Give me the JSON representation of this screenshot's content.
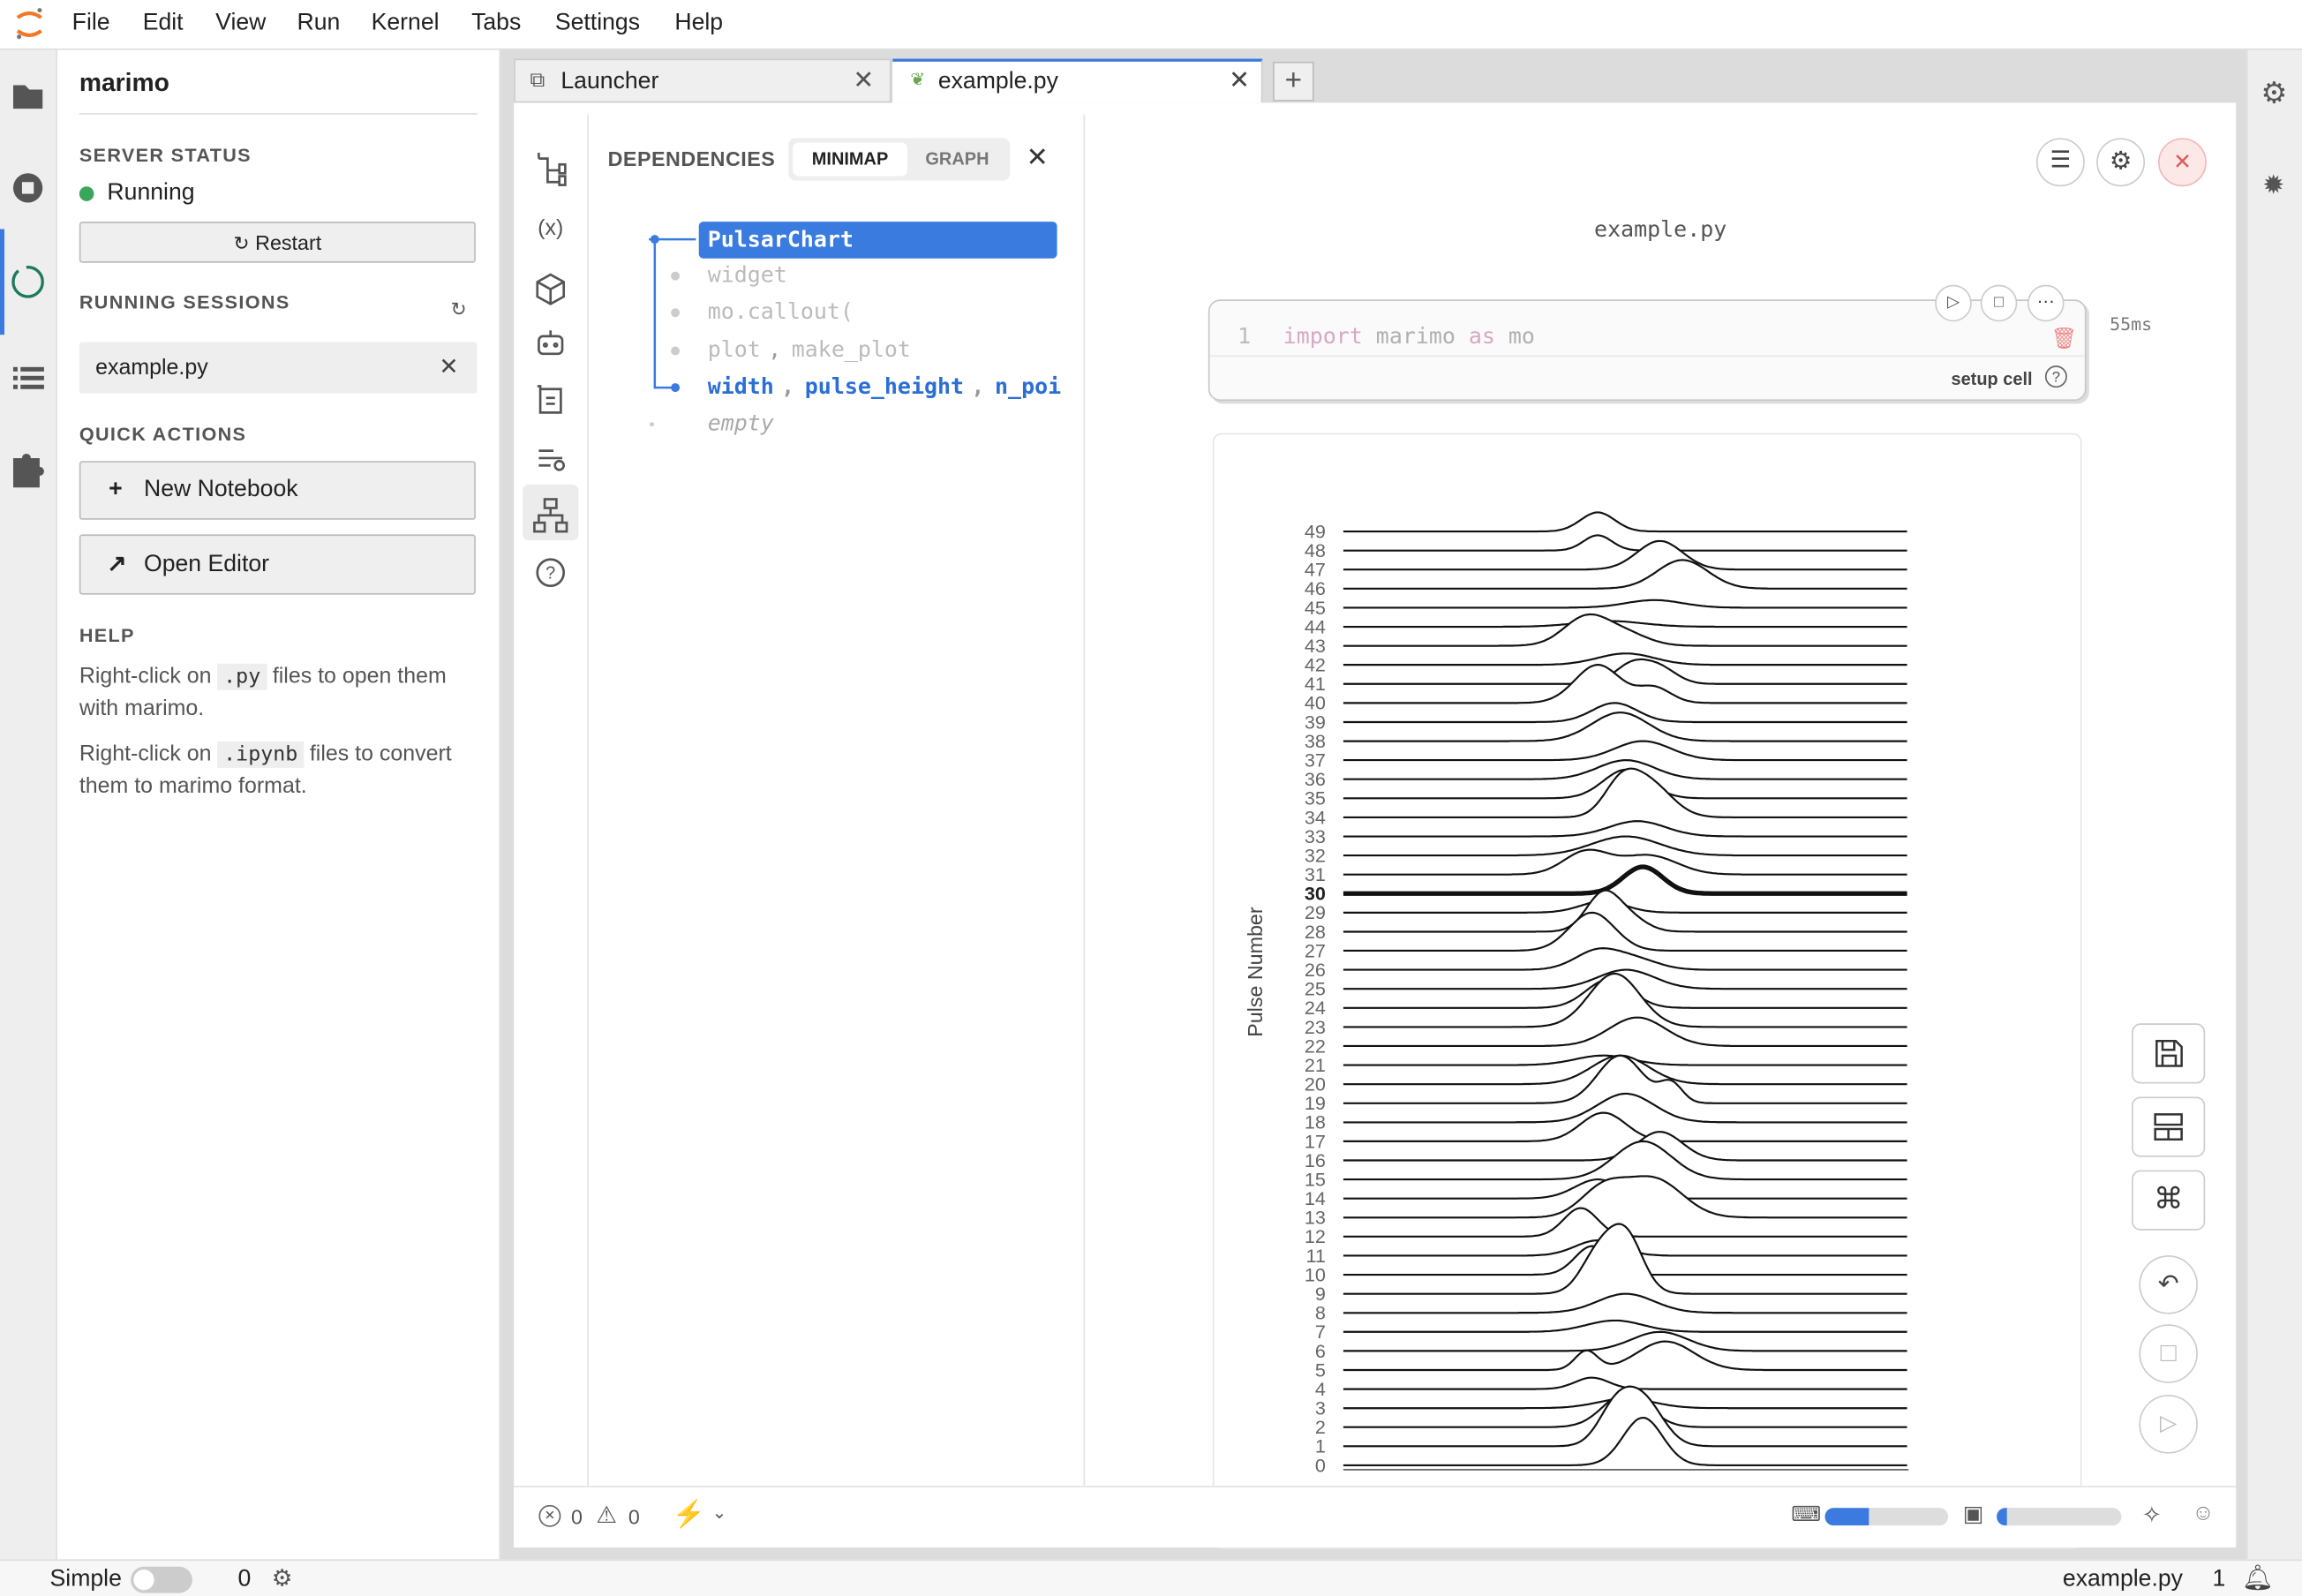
{
  "menu": [
    "File",
    "Edit",
    "View",
    "Run",
    "Kernel",
    "Tabs",
    "Settings",
    "Help"
  ],
  "sidebar": {
    "title": "marimo",
    "server_status": "SERVER STATUS",
    "status": "Running",
    "restart": "Restart",
    "running_sessions": "RUNNING SESSIONS",
    "session": "example.py",
    "quick_actions": "QUICK ACTIONS",
    "new_notebook": "New Notebook",
    "open_editor": "Open Editor",
    "help": "HELP",
    "help_items": [
      [
        "Right-click on ",
        ".py",
        " files to open them with marimo."
      ],
      [
        "Right-click on ",
        ".ipynb",
        " files to convert them to marimo format."
      ]
    ]
  },
  "tabs": [
    "Launcher",
    "example.py"
  ],
  "dependencies": {
    "title": "DEPENDENCIES",
    "minimap": "MINIMAP",
    "graph": "GRAPH",
    "separator": ",",
    "items": [
      [
        "PulsarChart"
      ],
      [
        "widget"
      ],
      [
        "mo.callout("
      ],
      [
        "plot",
        "make_plot"
      ],
      [
        "width",
        "pulse_height",
        "n_poi"
      ],
      [
        "empty"
      ]
    ]
  },
  "notebook": {
    "filename": "example.py",
    "cell": {
      "line": 1,
      "code": [
        "import",
        "marimo",
        "as",
        "mo"
      ],
      "time": "55ms",
      "label": "setup cell"
    },
    "chart": {
      "y_label": "Pulse Number",
      "highlighted_pulse": 30,
      "pulses": [
        {
          "label": 0,
          "peaks": [
            [
              53,
              2.5,
              3.5
            ]
          ]
        },
        {
          "label": 1,
          "peaks": [
            [
              48,
              1.8,
              3
            ],
            [
              53,
              2.4,
              3.5
            ]
          ]
        },
        {
          "label": 2,
          "peaks": [
            [
              50,
              1.8,
              4
            ]
          ]
        },
        {
          "label": 3,
          "peaks": [
            [
              50,
              0.5,
              5
            ]
          ]
        },
        {
          "label": 4,
          "peaks": [
            [
              44,
              0.6,
              3
            ]
          ]
        },
        {
          "label": 5,
          "peaks": [
            [
              43,
              1,
              2
            ],
            [
              57,
              1.5,
              5
            ]
          ]
        },
        {
          "label": 6,
          "peaks": [
            [
              56,
              1,
              5
            ]
          ]
        },
        {
          "label": 7,
          "peaks": [
            [
              48,
              0.6,
              5
            ]
          ]
        },
        {
          "label": 8,
          "peaks": [
            [
              50,
              1,
              5
            ]
          ]
        },
        {
          "label": 9,
          "peaks": [
            [
              45,
              2,
              3
            ],
            [
              50,
              3,
              3
            ]
          ]
        },
        {
          "label": 10,
          "peaks": [
            [
              44,
              1.5,
              3
            ]
          ]
        },
        {
          "label": 11,
          "peaks": [
            [
              45,
              0.8,
              4
            ]
          ]
        },
        {
          "label": 12,
          "peaks": [
            [
              42,
              1.5,
              3
            ]
          ]
        },
        {
          "label": 13,
          "peaks": [
            [
              46,
              1.5,
              4
            ],
            [
              55,
              2,
              5
            ]
          ]
        },
        {
          "label": 14,
          "peaks": [
            [
              45,
              1,
              4
            ]
          ]
        },
        {
          "label": 15,
          "peaks": [
            [
              53,
              2,
              5
            ]
          ]
        },
        {
          "label": 16,
          "peaks": [
            [
              56,
              1.5,
              4
            ]
          ]
        },
        {
          "label": 17,
          "peaks": [
            [
              46,
              1.5,
              4
            ]
          ]
        },
        {
          "label": 18,
          "peaks": [
            [
              50,
              1.5,
              5
            ]
          ]
        },
        {
          "label": 19,
          "peaks": [
            [
              49,
              2.5,
              4
            ],
            [
              58,
              1,
              2
            ]
          ]
        },
        {
          "label": 20,
          "peaks": [
            [
              49,
              1.5,
              5
            ]
          ]
        },
        {
          "label": 21,
          "peaks": [
            [
              46,
              0.5,
              5
            ]
          ]
        },
        {
          "label": 22,
          "peaks": [
            [
              52,
              1.5,
              5
            ]
          ]
        },
        {
          "label": 23,
          "peaks": [
            [
              48,
              2.8,
              4.5
            ]
          ]
        },
        {
          "label": 24,
          "peaks": [
            [
              47,
              1.5,
              4
            ]
          ]
        },
        {
          "label": 25,
          "peaks": [
            [
              50,
              1,
              5
            ]
          ]
        },
        {
          "label": 26,
          "peaks": [
            [
              45,
              1,
              4
            ],
            [
              52,
              0.5,
              4
            ]
          ]
        },
        {
          "label": 27,
          "peaks": [
            [
              44,
              2,
              4
            ]
          ]
        },
        {
          "label": 28,
          "peaks": [
            [
              46,
              2,
              3
            ],
            [
              51,
              0.6,
              3
            ]
          ]
        },
        {
          "label": 29,
          "peaks": [
            [
              46,
              0.6,
              4
            ]
          ]
        },
        {
          "label": 30,
          "peaks": [
            [
              53,
              1.4,
              3.5
            ]
          ]
        },
        {
          "label": 31,
          "peaks": [
            [
              43,
              1.2,
              4
            ],
            [
              54,
              1,
              5
            ]
          ]
        },
        {
          "label": 32,
          "peaks": [
            [
              50,
              1,
              6
            ]
          ]
        },
        {
          "label": 33,
          "peaks": [
            [
              52,
              0.8,
              5
            ]
          ]
        },
        {
          "label": 34,
          "peaks": [
            [
              49,
              1.5,
              3
            ],
            [
              54,
              1.8,
              4
            ]
          ]
        },
        {
          "label": 35,
          "peaks": [
            [
              50,
              1.5,
              4
            ]
          ]
        },
        {
          "label": 36,
          "peaks": [
            [
              50,
              1,
              5
            ]
          ]
        },
        {
          "label": 37,
          "peaks": [
            [
              53,
              1,
              5
            ]
          ]
        },
        {
          "label": 38,
          "peaks": [
            [
              49,
              1.5,
              5
            ]
          ]
        },
        {
          "label": 39,
          "peaks": [
            [
              48,
              1,
              4
            ]
          ]
        },
        {
          "label": 40,
          "peaks": [
            [
              45,
              2,
              4
            ],
            [
              55,
              0.8,
              3
            ]
          ]
        },
        {
          "label": 41,
          "peaks": [
            [
              51,
              1,
              3
            ],
            [
              56,
              0.8,
              3
            ]
          ]
        },
        {
          "label": 42,
          "peaks": [
            [
              50,
              0.6,
              5
            ]
          ]
        },
        {
          "label": 43,
          "peaks": [
            [
              43,
              1.5,
              4
            ],
            [
              50,
              0.6,
              4
            ]
          ]
        },
        {
          "label": 44,
          "peaks": [
            [
              47,
              0.3,
              6
            ]
          ]
        },
        {
          "label": 45,
          "peaks": [
            [
              55,
              0.4,
              5
            ]
          ]
        },
        {
          "label": 46,
          "peaks": [
            [
              60,
              1.5,
              4.5
            ]
          ]
        },
        {
          "label": 47,
          "peaks": [
            [
              56,
              1.5,
              4
            ]
          ]
        },
        {
          "label": 48,
          "peaks": [
            [
              45,
              0.8,
              2.5
            ]
          ]
        },
        {
          "label": 49,
          "peaks": [
            [
              45,
              1,
              3
            ]
          ]
        }
      ]
    }
  },
  "status": {
    "errors": 0,
    "warnings": 0
  },
  "footer": {
    "mode": "Simple",
    "count": 0,
    "file": "example.py",
    "line": 1
  }
}
